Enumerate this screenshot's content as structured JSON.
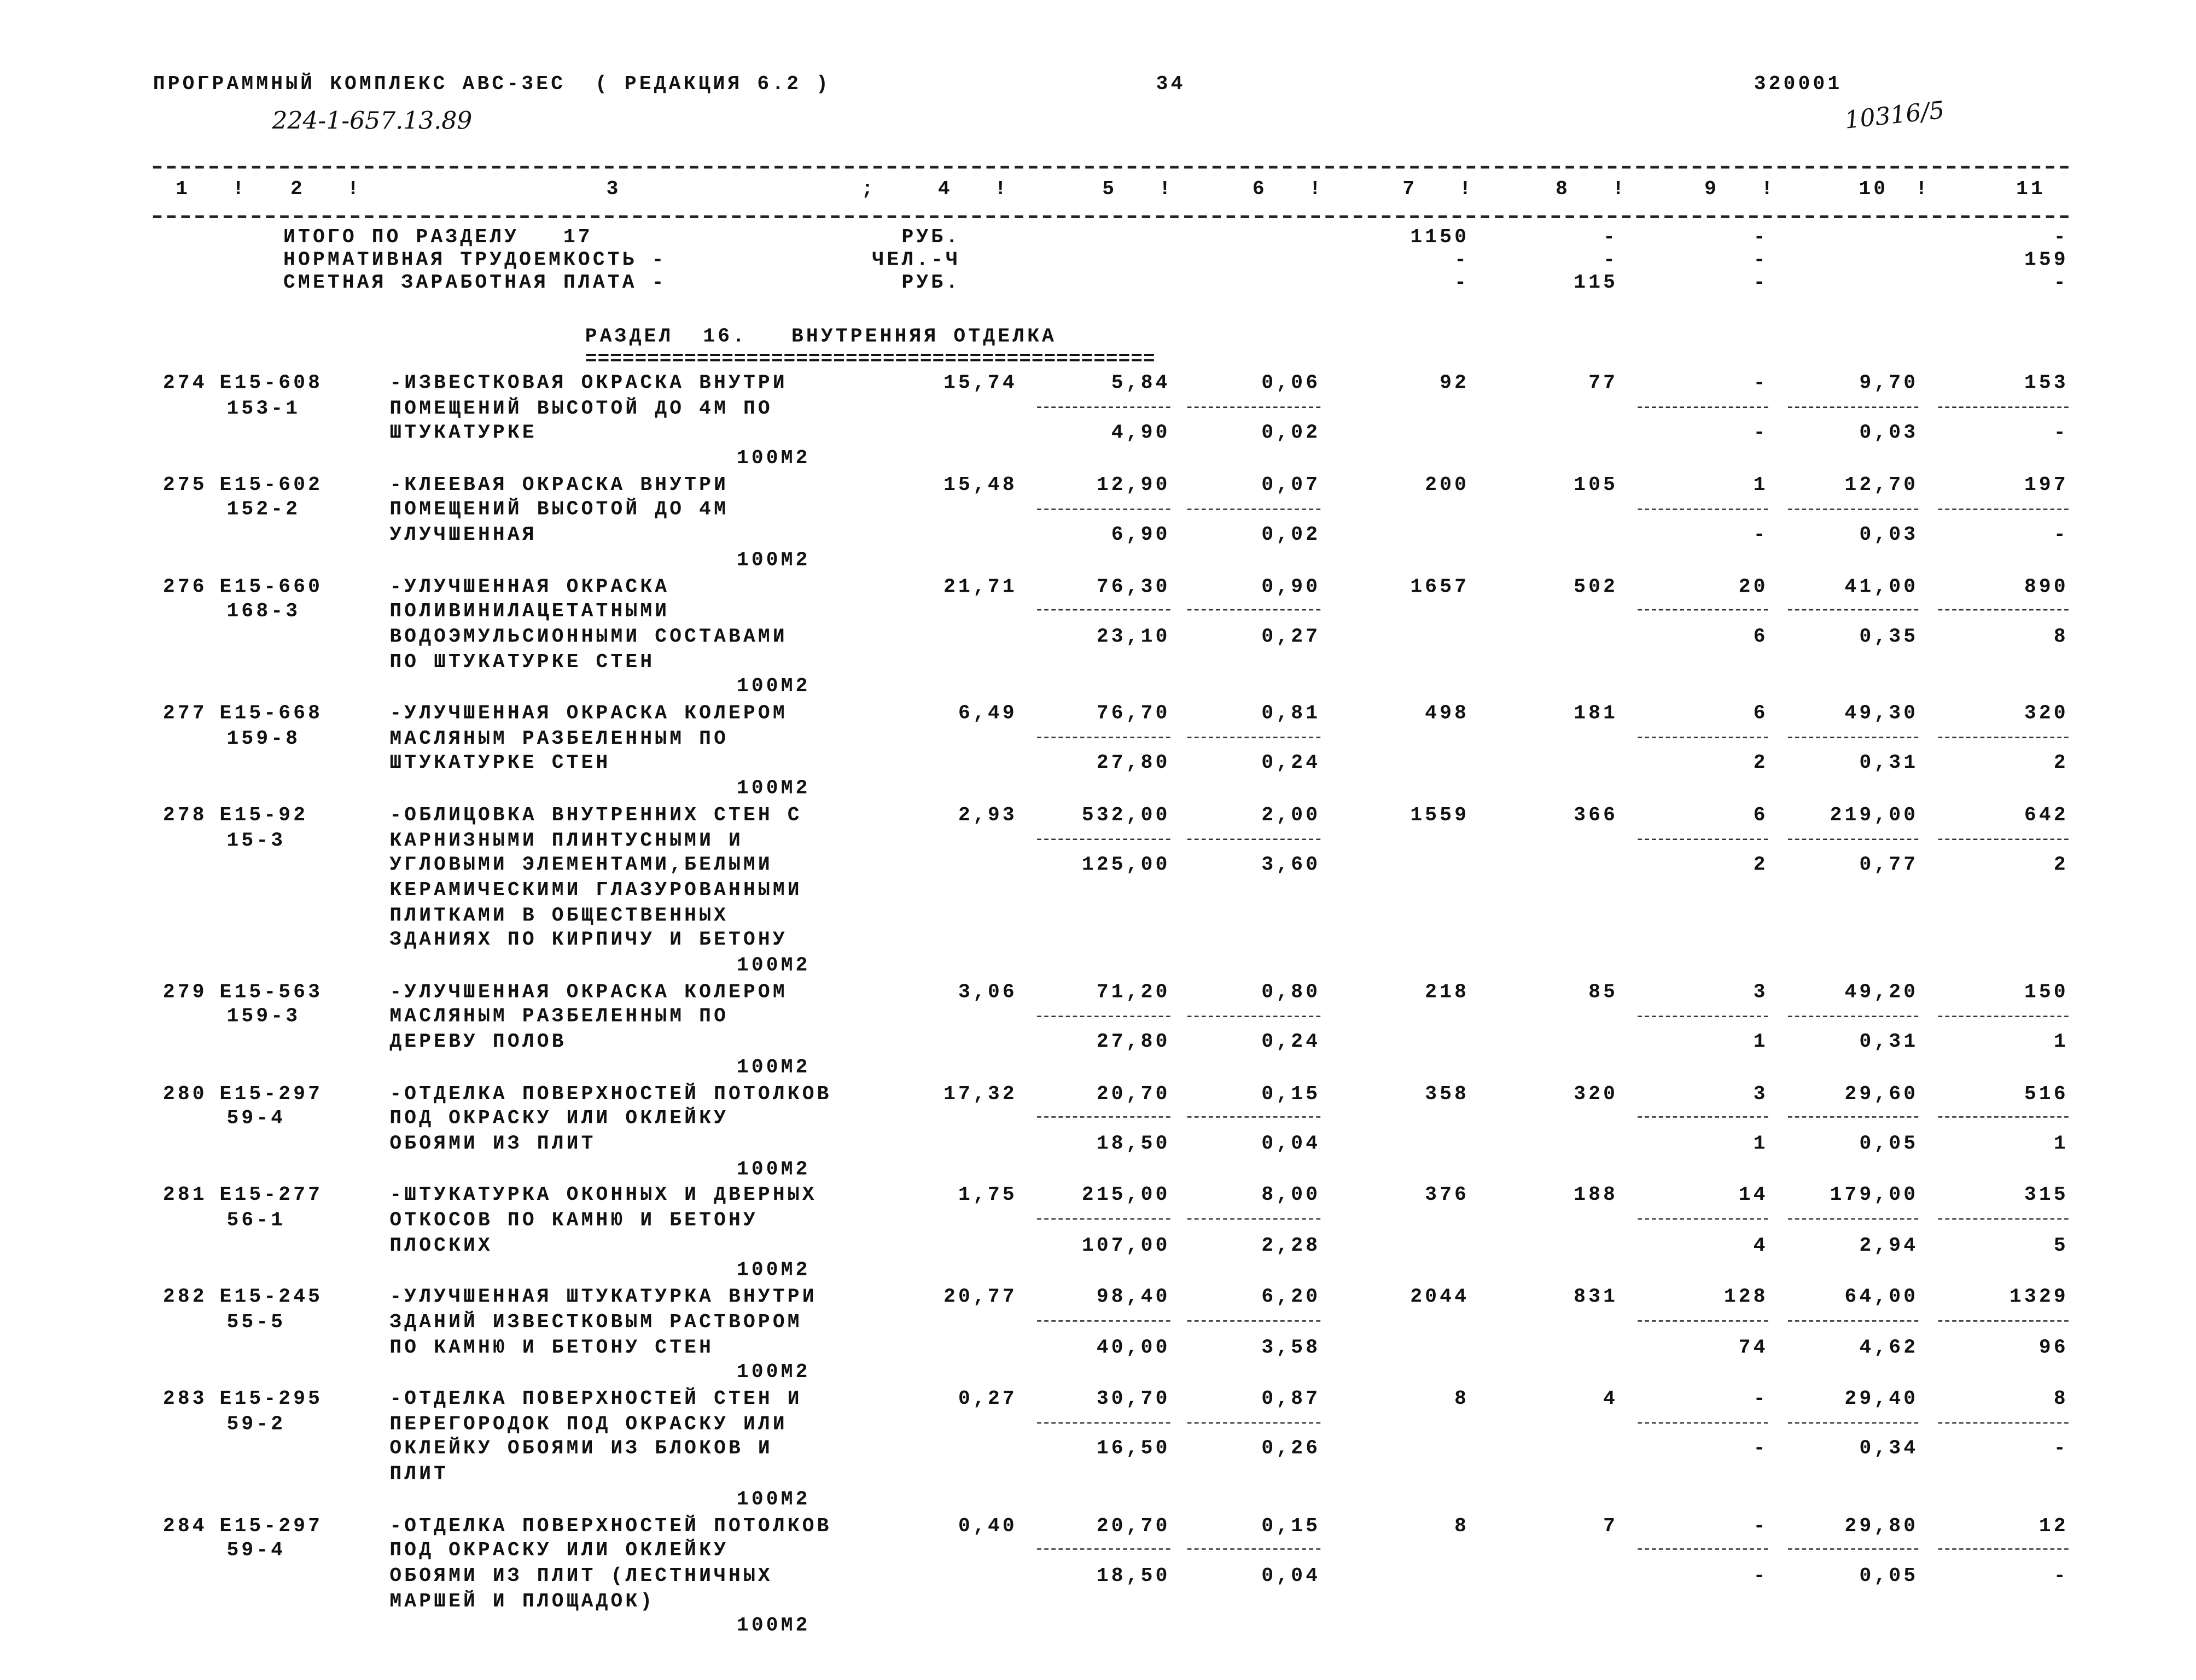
{
  "header": {
    "program": "ПРОГРАММНЫЙ КОМПЛЕКС АВС-3ЕС  ( РЕДАКЦИЯ 6.2 )",
    "page": "34",
    "code": "320001",
    "handwritten_left": "224-1-657.13.89",
    "handwritten_right": "10316/5"
  },
  "columns": [
    "1",
    "2",
    "3",
    "4",
    "5",
    "6",
    "7",
    "8",
    "9",
    "10",
    "11"
  ],
  "totals": [
    {
      "label": "ИТОГО ПО РАЗДЕЛУ   17",
      "unit": "РУБ.",
      "c7": "1150",
      "c8": "-",
      "c9": "-",
      "c11": "-"
    },
    {
      "label": "НОРМАТИВНАЯ ТРУДОЕМКОСТЬ -",
      "unit": "ЧЕЛ.-Ч",
      "c7": "-",
      "c8": "-",
      "c9": "-",
      "c11": "159"
    },
    {
      "label": "СМЕТНАЯ ЗАРАБОТНАЯ ПЛАТА -",
      "unit": "РУБ.",
      "c7": "-",
      "c8": "115",
      "c9": "-",
      "c11": "-"
    }
  ],
  "section": {
    "title": "РАЗДЕЛ  16.   ВНУТРЕННЯЯ ОТДЕЛКА",
    "underline": "=============================================="
  },
  "rows": [
    {
      "no": "274",
      "code": "Е15-608",
      "code2": "153-1",
      "desc": [
        "-ИЗВЕСТКОВАЯ ОКРАСКА ВНУТРИ",
        "ПОМЕЩЕНИЙ ВЫСОТОЙ ДО 4М ПО",
        "ШТУКАТУРКЕ"
      ],
      "unit": "100М2",
      "c4": "15,74",
      "c5": [
        "5,84",
        "4,90"
      ],
      "c6": [
        "0,06",
        "0,02"
      ],
      "c7": "92",
      "c8": "77",
      "c9": [
        "-",
        "-"
      ],
      "c10": [
        "9,70",
        "0,03"
      ],
      "c11": [
        "153",
        "-"
      ]
    },
    {
      "no": "275",
      "code": "Е15-602",
      "code2": "152-2",
      "desc": [
        "-КЛЕЕВАЯ ОКРАСКА ВНУТРИ",
        "ПОМЕЩЕНИЙ ВЫСОТОЙ ДО 4М",
        "УЛУЧШЕННАЯ"
      ],
      "unit": "100М2",
      "c4": "15,48",
      "c5": [
        "12,90",
        "6,90"
      ],
      "c6": [
        "0,07",
        "0,02"
      ],
      "c7": "200",
      "c8": "105",
      "c9": [
        "1",
        "-"
      ],
      "c10": [
        "12,70",
        "0,03"
      ],
      "c11": [
        "197",
        "-"
      ]
    },
    {
      "no": "276",
      "code": "Е15-660",
      "code2": "168-3",
      "desc": [
        "-УЛУЧШЕННАЯ ОКРАСКА",
        "ПОЛИВИНИЛАЦЕТАТНЫМИ",
        "ВОДОЭМУЛЬСИОННЫМИ СОСТАВАМИ",
        "ПО ШТУКАТУРКЕ СТЕН"
      ],
      "unit": "100М2",
      "c4": "21,71",
      "c5": [
        "76,30",
        "23,10"
      ],
      "c6": [
        "0,90",
        "0,27"
      ],
      "c7": "1657",
      "c8": "502",
      "c9": [
        "20",
        "6"
      ],
      "c10": [
        "41,00",
        "0,35"
      ],
      "c11": [
        "890",
        "8"
      ]
    },
    {
      "no": "277",
      "code": "Е15-668",
      "code2": "159-8",
      "desc": [
        "-УЛУЧШЕННАЯ ОКРАСКА КОЛЕРОМ",
        "МАСЛЯНЫМ РАЗБЕЛЕННЫМ ПО",
        "ШТУКАТУРКЕ СТЕН"
      ],
      "unit": "100М2",
      "c4": "6,49",
      "c5": [
        "76,70",
        "27,80"
      ],
      "c6": [
        "0,81",
        "0,24"
      ],
      "c7": "498",
      "c8": "181",
      "c9": [
        "6",
        "2"
      ],
      "c10": [
        "49,30",
        "0,31"
      ],
      "c11": [
        "320",
        "2"
      ]
    },
    {
      "no": "278",
      "code": "Е15-92",
      "code2": "15-3",
      "desc": [
        "-ОБЛИЦОВКА ВНУТРЕННИХ СТЕН С",
        "КАРНИЗНЫМИ ПЛИНТУСНЫМИ И",
        "УГЛОВЫМИ ЭЛЕМЕНТАМИ,БЕЛЫМИ",
        "КЕРАМИЧЕСКИМИ ГЛАЗУРОВАННЫМИ",
        "ПЛИТКАМИ В ОБЩЕСТВЕННЫХ",
        "ЗДАНИЯХ ПО КИРПИЧУ И БЕТОНУ"
      ],
      "unit": "100М2",
      "c4": "2,93",
      "c5": [
        "532,00",
        "125,00"
      ],
      "c6": [
        "2,00",
        "3,60"
      ],
      "c7": "1559",
      "c8": "366",
      "c9": [
        "6",
        "2"
      ],
      "c10": [
        "219,00",
        "0,77"
      ],
      "c11": [
        "642",
        "2"
      ]
    },
    {
      "no": "279",
      "code": "Е15-563",
      "code2": "159-3",
      "desc": [
        "-УЛУЧШЕННАЯ ОКРАСКА КОЛЕРОМ",
        "МАСЛЯНЫМ РАЗБЕЛЕННЫМ ПО",
        "ДЕРЕВУ ПОЛОВ"
      ],
      "unit": "100М2",
      "c4": "3,06",
      "c5": [
        "71,20",
        "27,80"
      ],
      "c6": [
        "0,80",
        "0,24"
      ],
      "c7": "218",
      "c8": "85",
      "c9": [
        "3",
        "1"
      ],
      "c10": [
        "49,20",
        "0,31"
      ],
      "c11": [
        "150",
        "1"
      ]
    },
    {
      "no": "280",
      "code": "Е15-297",
      "code2": "59-4",
      "desc": [
        "-ОТДЕЛКА ПОВЕРХНОСТЕЙ ПОТОЛКОВ",
        "ПОД ОКРАСКУ ИЛИ ОКЛЕЙКУ",
        "ОБОЯМИ ИЗ ПЛИТ"
      ],
      "unit": "100М2",
      "c4": "17,32",
      "c5": [
        "20,70",
        "18,50"
      ],
      "c6": [
        "0,15",
        "0,04"
      ],
      "c7": "358",
      "c8": "320",
      "c9": [
        "3",
        "1"
      ],
      "c10": [
        "29,60",
        "0,05"
      ],
      "c11": [
        "516",
        "1"
      ]
    },
    {
      "no": "281",
      "code": "Е15-277",
      "code2": "56-1",
      "desc": [
        "-ШТУКАТУРКА ОКОННЫХ И ДВЕРНЫХ",
        "ОТКОСОВ ПО КАМНЮ И БЕТОНУ",
        "ПЛОСКИХ"
      ],
      "unit": "100М2",
      "c4": "1,75",
      "c5": [
        "215,00",
        "107,00"
      ],
      "c6": [
        "8,00",
        "2,28"
      ],
      "c7": "376",
      "c8": "188",
      "c9": [
        "14",
        "4"
      ],
      "c10": [
        "179,00",
        "2,94"
      ],
      "c11": [
        "315",
        "5"
      ]
    },
    {
      "no": "282",
      "code": "Е15-245",
      "code2": "55-5",
      "desc": [
        "-УЛУЧШЕННАЯ ШТУКАТУРКА ВНУТРИ",
        "ЗДАНИЙ ИЗВЕСТКОВЫМ РАСТВОРОМ",
        "ПО КАМНЮ И БЕТОНУ СТЕН"
      ],
      "unit": "100М2",
      "c4": "20,77",
      "c5": [
        "98,40",
        "40,00"
      ],
      "c6": [
        "6,20",
        "3,58"
      ],
      "c7": "2044",
      "c8": "831",
      "c9": [
        "128",
        "74"
      ],
      "c10": [
        "64,00",
        "4,62"
      ],
      "c11": [
        "1329",
        "96"
      ]
    },
    {
      "no": "283",
      "code": "Е15-295",
      "code2": "59-2",
      "desc": [
        "-ОТДЕЛКА ПОВЕРХНОСТЕЙ СТЕН И",
        "ПЕРЕГОРОДОК ПОД ОКРАСКУ ИЛИ",
        "ОКЛЕЙКУ ОБОЯМИ ИЗ БЛОКОВ И",
        "ПЛИТ"
      ],
      "unit": "100М2",
      "c4": "0,27",
      "c5": [
        "30,70",
        "16,50"
      ],
      "c6": [
        "0,87",
        "0,26"
      ],
      "c7": "8",
      "c8": "4",
      "c9": [
        "-",
        "-"
      ],
      "c10": [
        "29,40",
        "0,34"
      ],
      "c11": [
        "8",
        "-"
      ]
    },
    {
      "no": "284",
      "code": "Е15-297",
      "code2": "59-4",
      "desc": [
        "-ОТДЕЛКА ПОВЕРХНОСТЕЙ ПОТОЛКОВ",
        "ПОД ОКРАСКУ ИЛИ ОКЛЕЙКУ",
        "ОБОЯМИ ИЗ ПЛИТ (ЛЕСТНИЧНЫХ",
        "МАРШЕЙ И ПЛОЩАДОК)"
      ],
      "unit": "100М2",
      "c4": "0,40",
      "c5": [
        "20,70",
        "18,50"
      ],
      "c6": [
        "0,15",
        "0,04"
      ],
      "c7": "8",
      "c8": "7",
      "c9": [
        "-",
        "-"
      ],
      "c10": [
        "29,80",
        "0,05"
      ],
      "c11": [
        "12",
        "-"
      ]
    }
  ]
}
